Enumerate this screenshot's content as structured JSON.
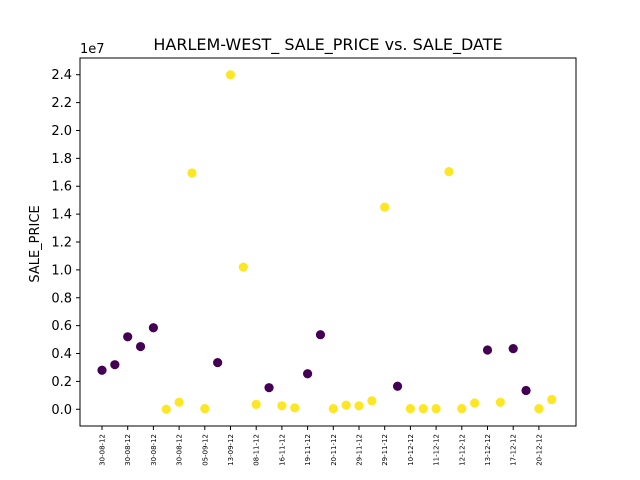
{
  "chart_data": {
    "type": "scatter",
    "title": "HARLEM-WEST_ SALE_PRICE vs. SALE_DATE",
    "xlabel": "",
    "ylabel": "SALE_PRICE",
    "y_multiplier_label": "1e7",
    "ylim": [
      -1200000,
      25200000
    ],
    "xlim": [
      -0.5,
      34.5
    ],
    "y_ticks": [
      0.0,
      0.2,
      0.4,
      0.6,
      0.8,
      1.0,
      1.2,
      1.4,
      1.6,
      1.8,
      2.0,
      2.2,
      2.4
    ],
    "x_tick_labels": [
      "30-08-12",
      "30-08-12",
      "30-08-12",
      "30-08-12",
      "05-09-12",
      "13-09-12",
      "08-11-12",
      "16-11-12",
      "19-11-12",
      "20-11-12",
      "29-11-12",
      "29-11-12",
      "10-12-12",
      "11-12-12",
      "12-12-12",
      "13-12-12",
      "17-12-12",
      "20-12-12"
    ],
    "grid": false,
    "colors": {
      "group_a": "#440154",
      "group_b": "#fde725"
    },
    "points": [
      {
        "x": 0,
        "y": 2800000,
        "group": "group_a"
      },
      {
        "x": 1,
        "y": 3200000,
        "group": "group_a"
      },
      {
        "x": 2,
        "y": 5200000,
        "group": "group_a"
      },
      {
        "x": 3,
        "y": 4500000,
        "group": "group_a"
      },
      {
        "x": 4,
        "y": 5850000,
        "group": "group_a"
      },
      {
        "x": 5,
        "y": 0,
        "group": "group_b"
      },
      {
        "x": 6,
        "y": 500000,
        "group": "group_b"
      },
      {
        "x": 7,
        "y": 16950000,
        "group": "group_b"
      },
      {
        "x": 8,
        "y": 50000,
        "group": "group_b"
      },
      {
        "x": 9,
        "y": 3350000,
        "group": "group_a"
      },
      {
        "x": 10,
        "y": 24000000,
        "group": "group_b"
      },
      {
        "x": 11,
        "y": 10200000,
        "group": "group_b"
      },
      {
        "x": 12,
        "y": 350000,
        "group": "group_b"
      },
      {
        "x": 13,
        "y": 1550000,
        "group": "group_a"
      },
      {
        "x": 14,
        "y": 250000,
        "group": "group_b"
      },
      {
        "x": 15,
        "y": 100000,
        "group": "group_b"
      },
      {
        "x": 16,
        "y": 2550000,
        "group": "group_a"
      },
      {
        "x": 17,
        "y": 5350000,
        "group": "group_a"
      },
      {
        "x": 18,
        "y": 50000,
        "group": "group_b"
      },
      {
        "x": 19,
        "y": 300000,
        "group": "group_b"
      },
      {
        "x": 20,
        "y": 250000,
        "group": "group_b"
      },
      {
        "x": 21,
        "y": 600000,
        "group": "group_b"
      },
      {
        "x": 22,
        "y": 14500000,
        "group": "group_b"
      },
      {
        "x": 23,
        "y": 1650000,
        "group": "group_a"
      },
      {
        "x": 24,
        "y": 50000,
        "group": "group_b"
      },
      {
        "x": 25,
        "y": 50000,
        "group": "group_b"
      },
      {
        "x": 26,
        "y": 50000,
        "group": "group_b"
      },
      {
        "x": 27,
        "y": 17050000,
        "group": "group_b"
      },
      {
        "x": 28,
        "y": 50000,
        "group": "group_b"
      },
      {
        "x": 29,
        "y": 450000,
        "group": "group_b"
      },
      {
        "x": 30,
        "y": 4250000,
        "group": "group_a"
      },
      {
        "x": 31,
        "y": 500000,
        "group": "group_b"
      },
      {
        "x": 32,
        "y": 4350000,
        "group": "group_a"
      },
      {
        "x": 33,
        "y": 1350000,
        "group": "group_a"
      },
      {
        "x": 34,
        "y": 50000,
        "group": "group_b"
      },
      {
        "x": 35,
        "y": 700000,
        "group": "group_b"
      }
    ]
  }
}
